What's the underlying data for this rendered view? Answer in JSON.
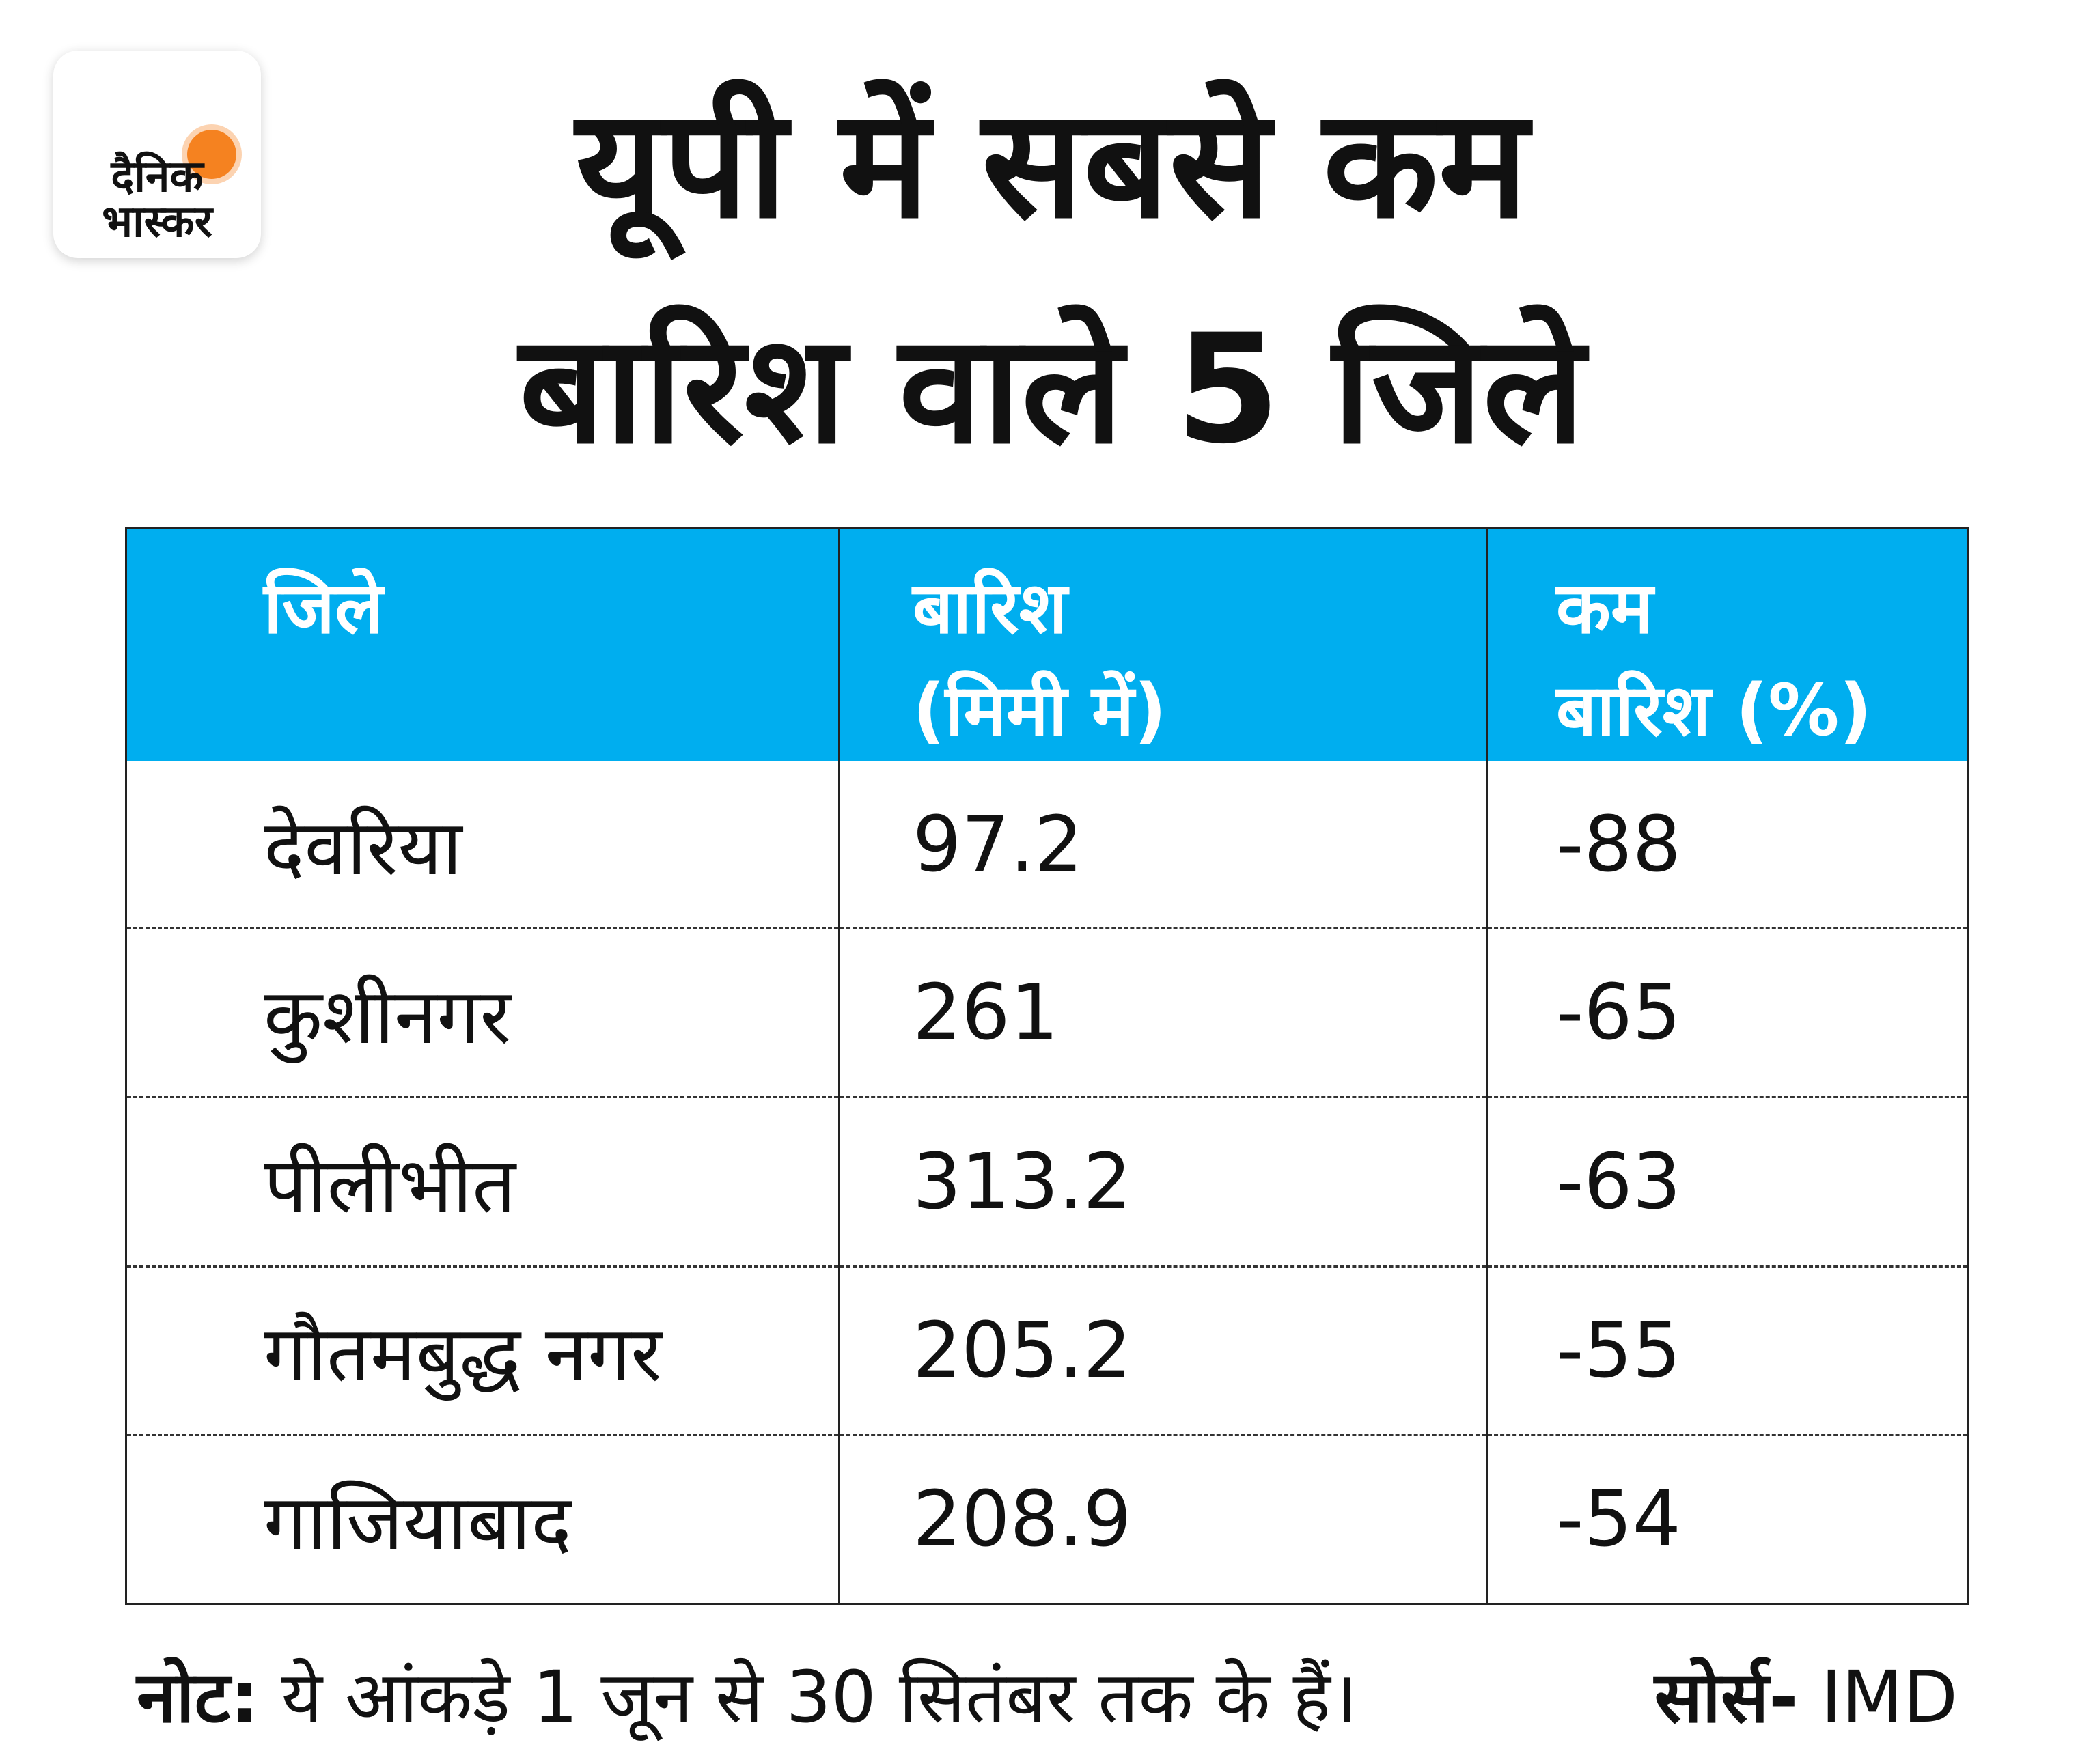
{
  "logo": {
    "line1": "दैनिक",
    "line2": "भास्कर"
  },
  "title": {
    "line1": "यूपी में सबसे कम",
    "line2": "बारिश वाले 5 जिले"
  },
  "chart_data": {
    "type": "table",
    "columns": [
      "जिले",
      "बारिश (मिमी में)",
      "कम बारिश (%)"
    ],
    "header": {
      "col1": "जिले",
      "col2_l1": "बारिश",
      "col2_l2": "(मिमी में)",
      "col3_l1": "कम",
      "col3_l2": "बारिश (%)"
    },
    "rows": [
      {
        "district": "देवरिया",
        "rain": "97.2",
        "deficit": "-88"
      },
      {
        "district": "कुशीनगर",
        "rain": "261",
        "deficit": "-65"
      },
      {
        "district": "पीलीभीत",
        "rain": "313.2",
        "deficit": "-63"
      },
      {
        "district": "गौतमबुद्ध नगर",
        "rain": "205.2",
        "deficit": "-55"
      },
      {
        "district": "गाजियाबाद",
        "rain": "208.9",
        "deficit": "-54"
      }
    ]
  },
  "footer": {
    "note_label": "नोट:",
    "note_text": " ये आंकड़े 1 जून से 30 सितंबर तक के हैं।",
    "source_label": "सोर्स-",
    "source_text": " IMD"
  },
  "colors": {
    "header": "#00aeef",
    "sun": "#f58220"
  }
}
